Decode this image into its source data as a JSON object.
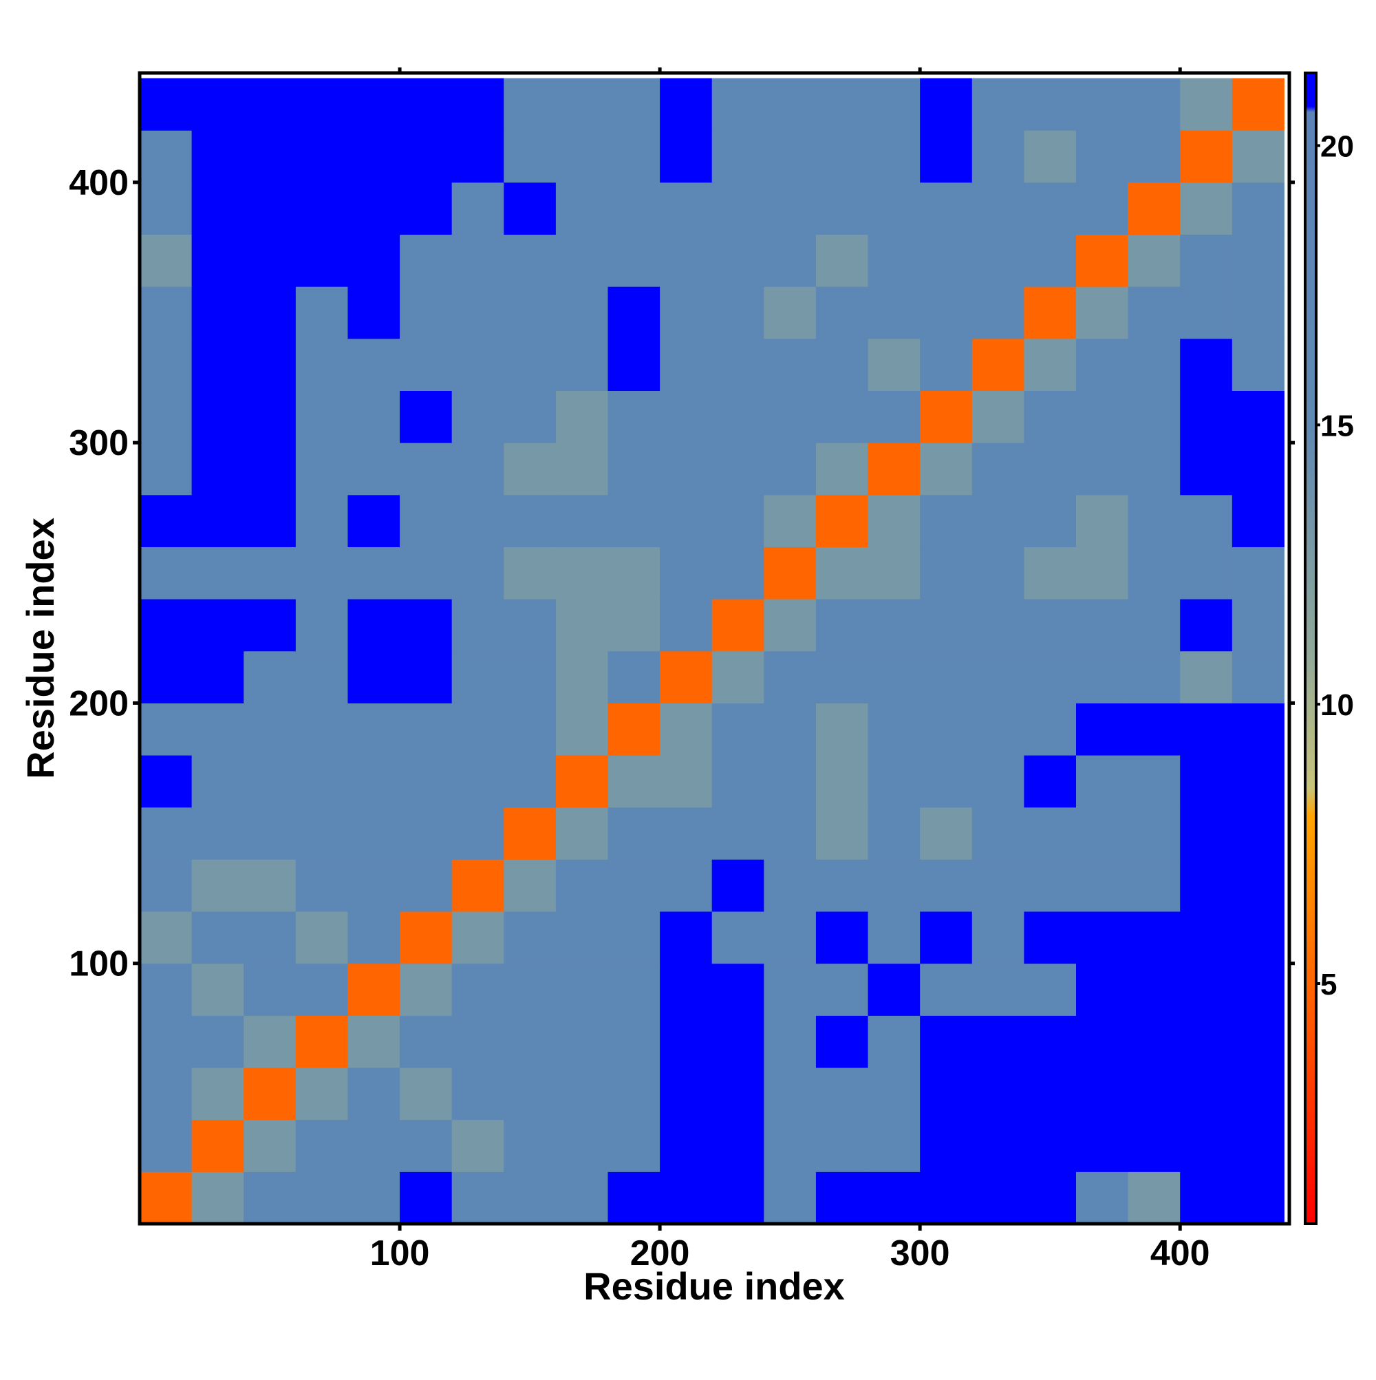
{
  "chart_data": {
    "type": "heatmap",
    "x_label": "Residue index",
    "y_label": "Residue index",
    "xlim": [
      0,
      442
    ],
    "ylim": [
      0,
      442
    ],
    "xticks": [
      100,
      200,
      300,
      400
    ],
    "yticks": [
      100,
      200,
      300,
      400
    ],
    "xbins": [
      0,
      20,
      40,
      60,
      80,
      100,
      120,
      140,
      160,
      180,
      200,
      220,
      240,
      260,
      280,
      300,
      320,
      340,
      360,
      380,
      400,
      420,
      440
    ],
    "ybins": [
      0,
      20,
      40,
      60,
      80,
      100,
      120,
      140,
      160,
      180,
      200,
      220,
      240,
      260,
      280,
      300,
      320,
      340,
      360,
      380,
      400,
      420,
      440
    ],
    "z": [
      [
        5,
        13,
        17,
        17,
        17,
        22,
        17,
        17,
        17,
        22,
        22,
        22,
        17,
        22,
        22,
        22,
        22,
        22,
        17,
        13,
        22,
        22
      ],
      [
        17,
        5,
        13,
        17,
        17,
        17,
        13,
        17,
        17,
        17,
        22,
        22,
        17,
        17,
        17,
        22,
        22,
        22,
        22,
        22,
        22,
        22
      ],
      [
        17,
        13,
        5,
        13,
        17,
        13,
        17,
        17,
        17,
        17,
        22,
        22,
        17,
        17,
        17,
        22,
        22,
        22,
        22,
        22,
        22,
        22
      ],
      [
        17,
        17,
        13,
        5,
        13,
        17,
        17,
        17,
        17,
        17,
        22,
        22,
        17,
        22,
        17,
        22,
        22,
        22,
        22,
        22,
        22,
        22
      ],
      [
        17,
        13,
        17,
        17,
        5,
        13,
        17,
        17,
        17,
        17,
        22,
        22,
        17,
        17,
        22,
        17,
        17,
        17,
        22,
        22,
        22,
        22
      ],
      [
        13,
        17,
        17,
        13,
        17,
        5,
        13,
        17,
        17,
        17,
        22,
        17,
        17,
        22,
        17,
        22,
        17,
        22,
        22,
        22,
        22,
        22
      ],
      [
        17,
        13,
        13,
        17,
        17,
        17,
        5,
        13,
        17,
        17,
        17,
        22,
        17,
        17,
        17,
        17,
        17,
        17,
        17,
        17,
        22,
        22
      ],
      [
        17,
        17,
        17,
        17,
        17,
        17,
        17,
        5,
        13,
        17,
        17,
        17,
        17,
        13,
        17,
        13,
        17,
        17,
        17,
        17,
        22,
        22
      ],
      [
        22,
        17,
        17,
        17,
        17,
        17,
        17,
        17,
        5,
        13,
        13,
        17,
        17,
        13,
        17,
        17,
        17,
        22,
        17,
        17,
        22,
        22
      ],
      [
        17,
        17,
        17,
        17,
        17,
        17,
        17,
        17,
        13,
        5,
        13,
        17,
        17,
        13,
        17,
        17,
        17,
        17,
        22,
        22,
        22,
        22
      ],
      [
        22,
        22,
        17,
        17,
        22,
        22,
        17,
        17,
        13,
        17,
        5,
        13,
        17,
        17,
        17,
        17,
        17,
        17,
        17,
        17,
        13,
        17
      ],
      [
        22,
        22,
        22,
        17,
        22,
        22,
        17,
        17,
        13,
        13,
        17,
        5,
        13,
        17,
        17,
        17,
        17,
        17,
        17,
        17,
        22,
        17
      ],
      [
        17,
        17,
        17,
        17,
        17,
        17,
        17,
        13,
        13,
        13,
        17,
        17,
        5,
        13,
        13,
        17,
        17,
        13,
        13,
        17,
        17,
        17
      ],
      [
        22,
        22,
        22,
        17,
        22,
        17,
        17,
        17,
        17,
        17,
        17,
        17,
        13,
        5,
        13,
        17,
        17,
        17,
        13,
        17,
        17,
        22
      ],
      [
        17,
        22,
        22,
        17,
        17,
        17,
        17,
        13,
        13,
        17,
        17,
        17,
        17,
        13,
        5,
        13,
        17,
        17,
        17,
        17,
        22,
        22
      ],
      [
        17,
        22,
        22,
        17,
        17,
        22,
        17,
        17,
        13,
        17,
        17,
        17,
        17,
        17,
        17,
        5,
        13,
        17,
        17,
        17,
        22,
        22
      ],
      [
        17,
        22,
        22,
        17,
        17,
        17,
        17,
        17,
        17,
        22,
        17,
        17,
        17,
        17,
        13,
        17,
        5,
        13,
        17,
        17,
        22,
        17
      ],
      [
        17,
        22,
        22,
        17,
        22,
        17,
        17,
        17,
        17,
        22,
        17,
        17,
        13,
        17,
        17,
        17,
        17,
        5,
        13,
        17,
        17,
        17
      ],
      [
        13,
        22,
        22,
        22,
        22,
        17,
        17,
        17,
        17,
        17,
        17,
        17,
        17,
        13,
        17,
        17,
        17,
        17,
        5,
        13,
        17,
        17
      ],
      [
        17,
        22,
        22,
        22,
        22,
        22,
        17,
        22,
        17,
        17,
        17,
        17,
        17,
        17,
        17,
        17,
        17,
        17,
        17,
        5,
        13,
        17
      ],
      [
        17,
        22,
        22,
        22,
        22,
        22,
        22,
        17,
        17,
        17,
        22,
        17,
        17,
        17,
        17,
        22,
        17,
        13,
        17,
        17,
        5,
        13
      ],
      [
        22,
        22,
        22,
        22,
        22,
        22,
        22,
        17,
        17,
        17,
        22,
        17,
        17,
        17,
        17,
        22,
        17,
        17,
        17,
        17,
        13,
        5
      ]
    ],
    "clim": [
      0.7,
      21.3
    ],
    "cticks": [
      5,
      10,
      15,
      20
    ],
    "colorscale": [
      {
        "value": 0.7,
        "color": "#ff0000"
      },
      {
        "value": 4,
        "color": "#ff5000"
      },
      {
        "value": 8,
        "color": "#ffa500"
      },
      {
        "value": 8.5,
        "color": "#c8c47a"
      },
      {
        "value": 11,
        "color": "#8fa89a"
      },
      {
        "value": 15,
        "color": "#5f88b2"
      },
      {
        "value": 20.6,
        "color": "#5a84b7"
      },
      {
        "value": 20.7,
        "color": "#0000ff"
      },
      {
        "value": 21.3,
        "color": "#0000ff"
      }
    ]
  }
}
